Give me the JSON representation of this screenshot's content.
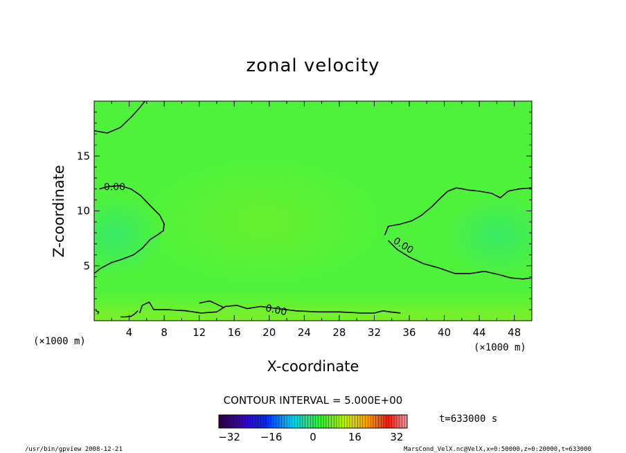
{
  "chart_data": {
    "type": "heatmap",
    "title": "zonal velocity",
    "xlabel": "X-coordinate",
    "ylabel": "Z-coordinate",
    "x_unit": "(×1000 m)",
    "z_unit": "(×1000 m)",
    "xlim": [
      0,
      50
    ],
    "ylim": [
      0,
      20
    ],
    "x_ticks": [
      4,
      8,
      12,
      16,
      20,
      24,
      28,
      32,
      36,
      40,
      44,
      48
    ],
    "y_ticks": [
      5,
      10,
      15
    ],
    "contour_interval_text": "CONTOUR INTERVAL = 5.000E+00",
    "contour_labels": [
      "0.00",
      "0.00",
      "0.00"
    ],
    "colorbar": {
      "range": [
        -36,
        36
      ],
      "ticks": [
        -32,
        -16,
        0,
        16,
        32
      ]
    },
    "time_label": "t=633000 s",
    "zero_contours": [
      {
        "label": "0.00",
        "points": [
          [
            0,
            17.3
          ],
          [
            1.5,
            17.1
          ],
          [
            3,
            17.6
          ],
          [
            4.3,
            18.6
          ],
          [
            5.2,
            19.4
          ],
          [
            5.8,
            20
          ]
        ]
      },
      {
        "label": "0.00",
        "points": [
          [
            0,
            4.3
          ],
          [
            0.8,
            4.8
          ],
          [
            2,
            5.3
          ],
          [
            3.2,
            5.6
          ],
          [
            4.5,
            6.0
          ],
          [
            5.5,
            6.6
          ],
          [
            6.4,
            7.4
          ],
          [
            7.2,
            7.8
          ],
          [
            7.9,
            8.2
          ],
          [
            8.0,
            8.8
          ],
          [
            7.5,
            9.6
          ],
          [
            6.5,
            10.4
          ],
          [
            5.3,
            11.4
          ],
          [
            4.2,
            12.0
          ],
          [
            3.0,
            12.3
          ],
          [
            1.5,
            12.2
          ],
          [
            0.6,
            12.0
          ]
        ]
      },
      {
        "label": "0.00",
        "points": [
          [
            33.2,
            7.8
          ],
          [
            33.6,
            8.6
          ],
          [
            35,
            8.8
          ],
          [
            36.3,
            9.1
          ],
          [
            37.4,
            9.6
          ],
          [
            38.6,
            10.4
          ],
          [
            39.6,
            11.2
          ],
          [
            40.4,
            11.8
          ],
          [
            41.4,
            12.1
          ],
          [
            42.8,
            11.9
          ],
          [
            44.0,
            11.8
          ],
          [
            45.4,
            11.6
          ],
          [
            46.4,
            11.2
          ],
          [
            47.3,
            11.8
          ],
          [
            48.5,
            12.0
          ],
          [
            50,
            12.1
          ]
        ]
      },
      {
        "label": "",
        "points": [
          [
            33.6,
            7.3
          ],
          [
            34.6,
            6.5
          ],
          [
            36.0,
            5.8
          ],
          [
            37.6,
            5.2
          ],
          [
            39.4,
            4.8
          ],
          [
            41.2,
            4.3
          ],
          [
            43.0,
            4.3
          ],
          [
            44.6,
            4.5
          ],
          [
            46.2,
            4.2
          ],
          [
            47.6,
            3.9
          ],
          [
            49,
            3.8
          ],
          [
            50,
            3.9
          ]
        ]
      },
      {
        "label": "0.00",
        "points": [
          [
            5.2,
            0.7
          ],
          [
            5.5,
            1.4
          ],
          [
            6.3,
            1.7
          ],
          [
            6.8,
            1.0
          ],
          [
            8.4,
            1.0
          ],
          [
            10.5,
            0.9
          ],
          [
            12.2,
            0.7
          ],
          [
            14.0,
            0.8
          ],
          [
            15.0,
            1.3
          ],
          [
            16.3,
            1.4
          ],
          [
            17.5,
            1.1
          ],
          [
            19.0,
            1.3
          ],
          [
            21.0,
            1.1
          ],
          [
            23.0,
            0.9
          ],
          [
            25.5,
            0.8
          ],
          [
            28.0,
            0.8
          ],
          [
            30.5,
            0.7
          ],
          [
            32.0,
            0.7
          ],
          [
            33.0,
            0.9
          ],
          [
            33.8,
            0.8
          ],
          [
            35,
            0.7
          ]
        ]
      },
      {
        "label": "",
        "points": [
          [
            12.0,
            1.6
          ],
          [
            13.2,
            1.8
          ],
          [
            14.0,
            1.5
          ],
          [
            14.8,
            1.2
          ]
        ]
      },
      {
        "label": "",
        "points": [
          [
            5.0,
            0.9
          ],
          [
            4.6,
            0.6
          ],
          [
            4.2,
            0.4
          ],
          [
            3.6,
            0.35
          ],
          [
            3,
            0.35
          ]
        ]
      },
      {
        "label": "",
        "points": [
          [
            0.2,
            0.9
          ],
          [
            0.5,
            0.8
          ],
          [
            0.4,
            0.6
          ]
        ]
      }
    ]
  },
  "footer": {
    "left": "/usr/bin/gpview   2008-12-21",
    "right": "MarsCond_VelX.nc@VelX,x=0:50000,z=0:20000,t=633000"
  }
}
